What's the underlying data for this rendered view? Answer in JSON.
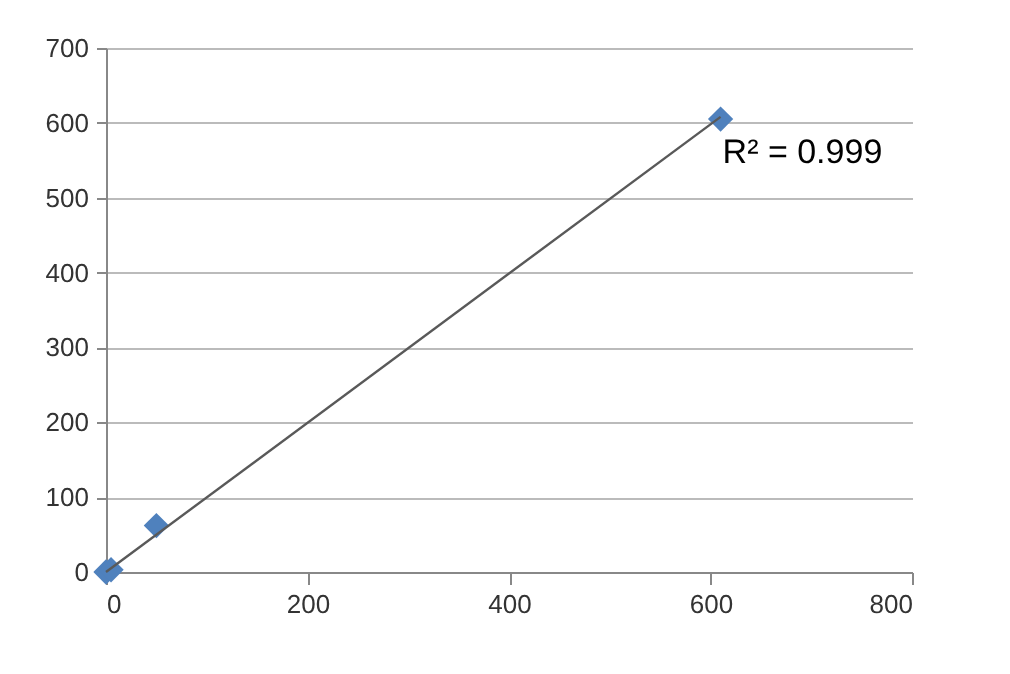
{
  "chart_data": {
    "type": "scatter",
    "xlim": [
      0,
      800
    ],
    "xticks": [
      0,
      200,
      400,
      600,
      800
    ],
    "ylim": [
      0,
      700
    ],
    "yticks": [
      0,
      100,
      200,
      300,
      400,
      500,
      600,
      700
    ],
    "grid": "y",
    "series": [
      {
        "color": "#4f81bd",
        "marker": "diamond",
        "x": [
          0,
          5,
          50,
          610
        ],
        "values": [
          0,
          3,
          62,
          605
        ]
      },
      {
        "type": "line",
        "color": "#595959",
        "marker": "none",
        "x": [
          0,
          610
        ],
        "values": [
          0,
          608
        ]
      }
    ],
    "annotations": [
      "R² = 0.999"
    ]
  }
}
